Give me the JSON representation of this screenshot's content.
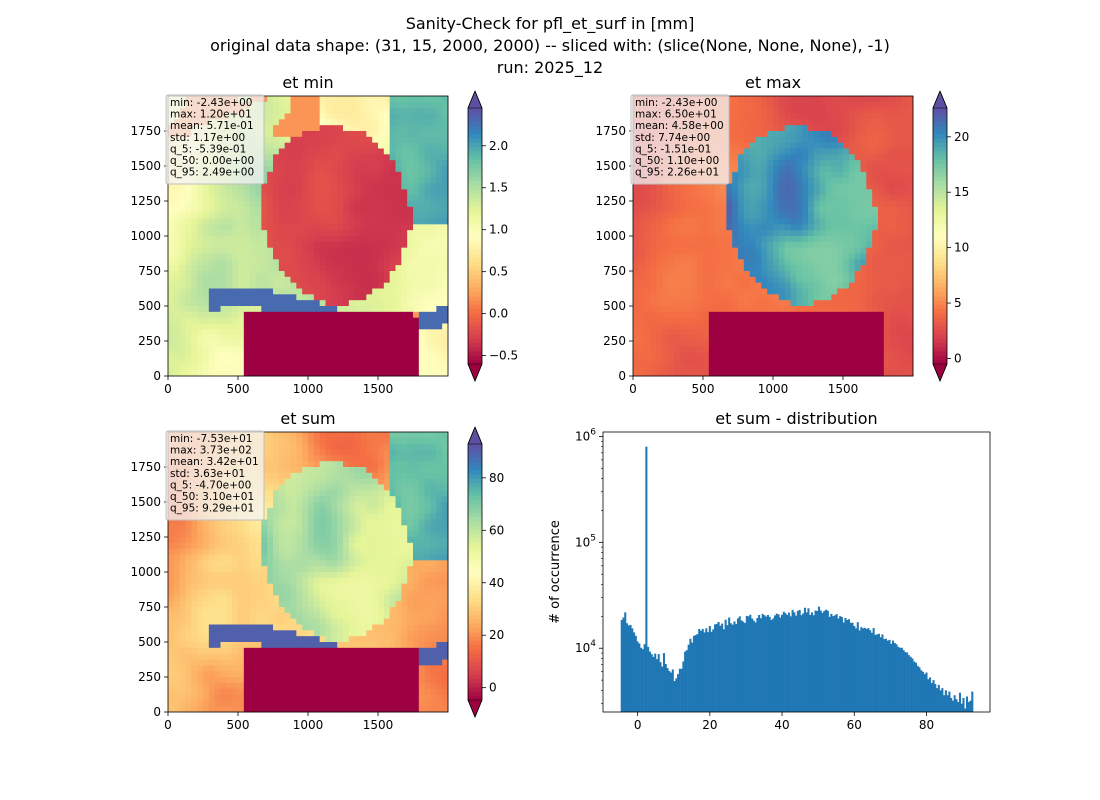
{
  "suptitle": {
    "line1": "Sanity-Check for pfl_et_surf in [mm]",
    "line2": "original data shape: (31, 15, 2000, 2000) -- sliced with: (slice(None, None, None), -1)",
    "line3": "run: 2025_12"
  },
  "colors": {
    "spectral": [
      "#9e0142",
      "#d53e4f",
      "#f46d43",
      "#fdae61",
      "#fee08b",
      "#ffffbf",
      "#e6f598",
      "#abdda4",
      "#66c2a5",
      "#3288bd",
      "#5e4fa2"
    ],
    "hist_bar": "#1f77b4"
  },
  "chart_data": [
    {
      "type": "heatmap",
      "title": "et min",
      "x_ticks": [
        "0",
        "500",
        "1000",
        "1500"
      ],
      "y_ticks": [
        "0",
        "250",
        "500",
        "750",
        "1000",
        "1250",
        "1500",
        "1750"
      ],
      "xlim": [
        0,
        2000
      ],
      "ylim": [
        0,
        2000
      ],
      "colorbar": {
        "vmin": -0.6,
        "vmax": 2.45,
        "ticks": [
          -0.5,
          0.0,
          0.5,
          1.0,
          1.5,
          2.0
        ],
        "tick_labels": [
          "−0.5",
          "0.0",
          "0.5",
          "1.0",
          "1.5",
          "2.0"
        ],
        "extend": "both"
      },
      "stats": [
        "min: -2.43e+00",
        "max: 1.20e+01",
        "mean: 5.71e-01",
        "std: 1.17e+00",
        "q_5: -5.39e-01",
        "q_50: 0.00e+00",
        "q_95: 2.49e+00"
      ]
    },
    {
      "type": "heatmap",
      "title": "et max",
      "x_ticks": [
        "0",
        "500",
        "1000",
        "1500"
      ],
      "y_ticks": [
        "0",
        "250",
        "500",
        "750",
        "1000",
        "1250",
        "1500",
        "1750"
      ],
      "xlim": [
        0,
        2000
      ],
      "ylim": [
        0,
        2000
      ],
      "colorbar": {
        "vmin": -0.5,
        "vmax": 22.6,
        "ticks": [
          0,
          5,
          10,
          15,
          20
        ],
        "tick_labels": [
          "0",
          "5",
          "10",
          "15",
          "20"
        ],
        "extend": "both"
      },
      "stats": [
        "min: -2.43e+00",
        "max: 6.50e+01",
        "mean: 4.58e+00",
        "std: 7.74e+00",
        "q_5: -1.51e-01",
        "q_50: 1.10e+00",
        "q_95: 2.26e+01"
      ]
    },
    {
      "type": "heatmap",
      "title": "et sum",
      "x_ticks": [
        "0",
        "500",
        "1000",
        "1500"
      ],
      "y_ticks": [
        "0",
        "250",
        "500",
        "750",
        "1000",
        "1250",
        "1500",
        "1750"
      ],
      "xlim": [
        0,
        2000
      ],
      "ylim": [
        0,
        2000
      ],
      "colorbar": {
        "vmin": -4.7,
        "vmax": 92.9,
        "ticks": [
          0,
          20,
          40,
          60,
          80
        ],
        "tick_labels": [
          "0",
          "20",
          "40",
          "60",
          "80"
        ],
        "extend": "both"
      },
      "stats": [
        "min: -7.53e+01",
        "max: 3.73e+02",
        "mean: 3.42e+01",
        "std: 3.63e+01",
        "q_5: -4.70e+00",
        "q_50: 3.10e+01",
        "q_95: 9.29e+01"
      ]
    },
    {
      "type": "bar",
      "title": "et sum - distribution",
      "ylabel": "# of occurrence",
      "xlim": [
        -9.6,
        97.6
      ],
      "ylog_range": [
        2500,
        1100000
      ],
      "x_ticks": [
        0,
        20,
        40,
        60,
        80
      ],
      "x_tick_labels": [
        "0",
        "20",
        "40",
        "60",
        "80"
      ],
      "y_ticks": [
        10000,
        100000,
        1000000
      ],
      "y_tick_exponents": [
        "4",
        "5",
        "6"
      ],
      "y_tick_base": "10",
      "bins": {
        "start": -4.7,
        "end": 92.9,
        "count": 200
      },
      "counts": [
        18500,
        19500,
        21800,
        17200,
        16400,
        16600,
        15400,
        14100,
        13100,
        11600,
        11100,
        10100,
        9800,
        10900,
        800000,
        10300,
        9300,
        8800,
        8300,
        8900,
        7900,
        8800,
        7400,
        6700,
        9000,
        7100,
        6500,
        6100,
        5900,
        6300,
        4900,
        5200,
        5700,
        6400,
        6400,
        7500,
        9300,
        9600,
        10800,
        12300,
        11300,
        13100,
        13300,
        13600,
        15200,
        14600,
        15200,
        14100,
        15400,
        14200,
        16200,
        14300,
        15100,
        16800,
        17000,
        17700,
        16300,
        17100,
        15100,
        18600,
        16500,
        19500,
        17200,
        16700,
        17900,
        16900,
        19100,
        20000,
        18300,
        17800,
        17300,
        20200,
        20000,
        20700,
        19100,
        18200,
        17500,
        19300,
        20600,
        19200,
        21100,
        20500,
        19900,
        20600,
        19800,
        18500,
        19100,
        20400,
        21200,
        20900,
        19500,
        20700,
        22100,
        21400,
        20600,
        21700,
        20000,
        23000,
        21800,
        20300,
        22500,
        23000,
        20500,
        21300,
        24100,
        21800,
        23800,
        20600,
        21800,
        20500,
        22700,
        22500,
        24700,
        22700,
        21600,
        22500,
        23100,
        22600,
        19800,
        21100,
        20100,
        20400,
        21000,
        19100,
        20100,
        19700,
        17500,
        19300,
        18500,
        18800,
        17400,
        17400,
        16200,
        15400,
        17600,
        14700,
        15800,
        15400,
        15600,
        15200,
        15500,
        14800,
        14000,
        15500,
        13400,
        13500,
        13700,
        12700,
        13500,
        12200,
        12300,
        11800,
        12000,
        11000,
        11800,
        11200,
        10900,
        10300,
        10100,
        10100,
        9600,
        9200,
        9100,
        8600,
        8300,
        8000,
        7500,
        7300,
        6800,
        6600,
        6200,
        6000,
        5700,
        5900,
        5100,
        5300,
        4700,
        5000,
        4600,
        4200,
        4500,
        4000,
        4200,
        3600,
        4000,
        3600,
        3900,
        3400,
        3200,
        3600,
        3300,
        3100,
        3800,
        3000,
        3400,
        2700,
        3500,
        3100,
        3200,
        3900
      ]
    }
  ]
}
